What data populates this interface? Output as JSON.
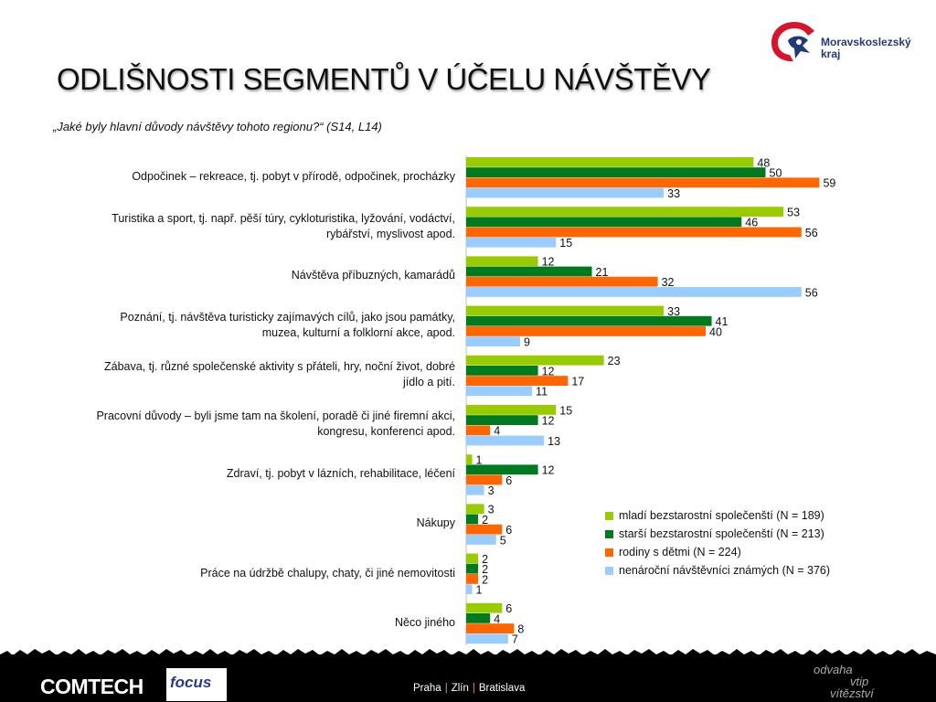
{
  "slide": {
    "title": "ODLIŠNOSTI SEGMENTŮ V ÚČELU NÁVŠTĚVY",
    "subtitle": "„Jaké byly hlavní důvody návštěvy tohoto regionu?“ (S14, L14)",
    "logo_line1": "Moravskoslezský",
    "logo_line2": "kraj"
  },
  "chart_data": {
    "type": "bar",
    "orientation": "horizontal",
    "categories": [
      "Odpočinek – rekreace, tj. pobyt v přírodě, odpočinek, procházky",
      "Turistika a sport, tj. např. pěší túry, cykloturistika, lyžování, vodáctví, rybářství, myslivost apod.",
      "Návštěva příbuzných, kamarádů",
      "Poznání, tj. návštěva turisticky zajímavých cílů, jako jsou památky, muzea, kulturní a folklorní akce, apod.",
      "Zábava, tj. různé společenské aktivity s přáteli, hry, noční život, dobré jídlo a pití.",
      "Pracovní důvody – byli jsme tam na školení, poradě či jiné firemní akci, kongresu, konferenci apod.",
      "Zdraví, tj. pobyt v lázních, rehabilitace, léčení",
      "Nákupy",
      "Práce na údržbě chalupy, chaty, či jiné nemovitosti",
      "Něco jiného"
    ],
    "category_lines": [
      [
        "Odpočinek – rekreace, tj. pobyt v přírodě, odpočinek, procházky"
      ],
      [
        "Turistika a sport, tj. např. pěší túry, cykloturistika, lyžování, vodáctví,",
        "rybářství, myslivost apod."
      ],
      [
        "Návštěva příbuzných, kamarádů"
      ],
      [
        "Poznání, tj. návštěva turisticky zajímavých cílů, jako jsou památky,",
        "muzea, kulturní a folklorní akce, apod."
      ],
      [
        "Zábava, tj. různé společenské aktivity s přáteli, hry, noční život, dobré",
        "jídlo a pití."
      ],
      [
        "Pracovní důvody – byli jsme tam na školení, poradě či jiné firemní akci,",
        "kongresu, konferenci apod."
      ],
      [
        "Zdraví, tj. pobyt v lázních, rehabilitace, léčení"
      ],
      [
        "Nákupy"
      ],
      [
        "Práce na údržbě chalupy, chaty, či jiné nemovitosti"
      ],
      [
        "Něco jiného"
      ]
    ],
    "series": [
      {
        "name": "mladí bezstarostní společenští (N = 189)",
        "color": "#99cc00",
        "values": [
          48,
          53,
          12,
          33,
          23,
          15,
          1,
          3,
          2,
          6
        ]
      },
      {
        "name": "starší bezstarostní společenští (N = 213)",
        "color": "#007a1e",
        "values": [
          50,
          46,
          21,
          41,
          12,
          12,
          12,
          2,
          2,
          4
        ]
      },
      {
        "name": "rodiny s dětmi (N = 224)",
        "color": "#ff6600",
        "values": [
          59,
          56,
          32,
          40,
          17,
          4,
          6,
          6,
          2,
          8
        ]
      },
      {
        "name": "nenároční návštěvníci známých (N = 376)",
        "color": "#99ccff",
        "values": [
          33,
          15,
          56,
          9,
          11,
          13,
          3,
          5,
          1,
          7
        ]
      }
    ],
    "xlim": [
      0,
      70
    ],
    "grid": false,
    "legend_position": "bottom-right"
  },
  "footer": {
    "company": "COMTECH",
    "partner": "focus",
    "cities": [
      "Praha",
      "Zlín",
      "Bratislava"
    ],
    "slogan_line1": "odvaha",
    "slogan_line2": "vtip",
    "slogan_line3": "vítězství"
  }
}
